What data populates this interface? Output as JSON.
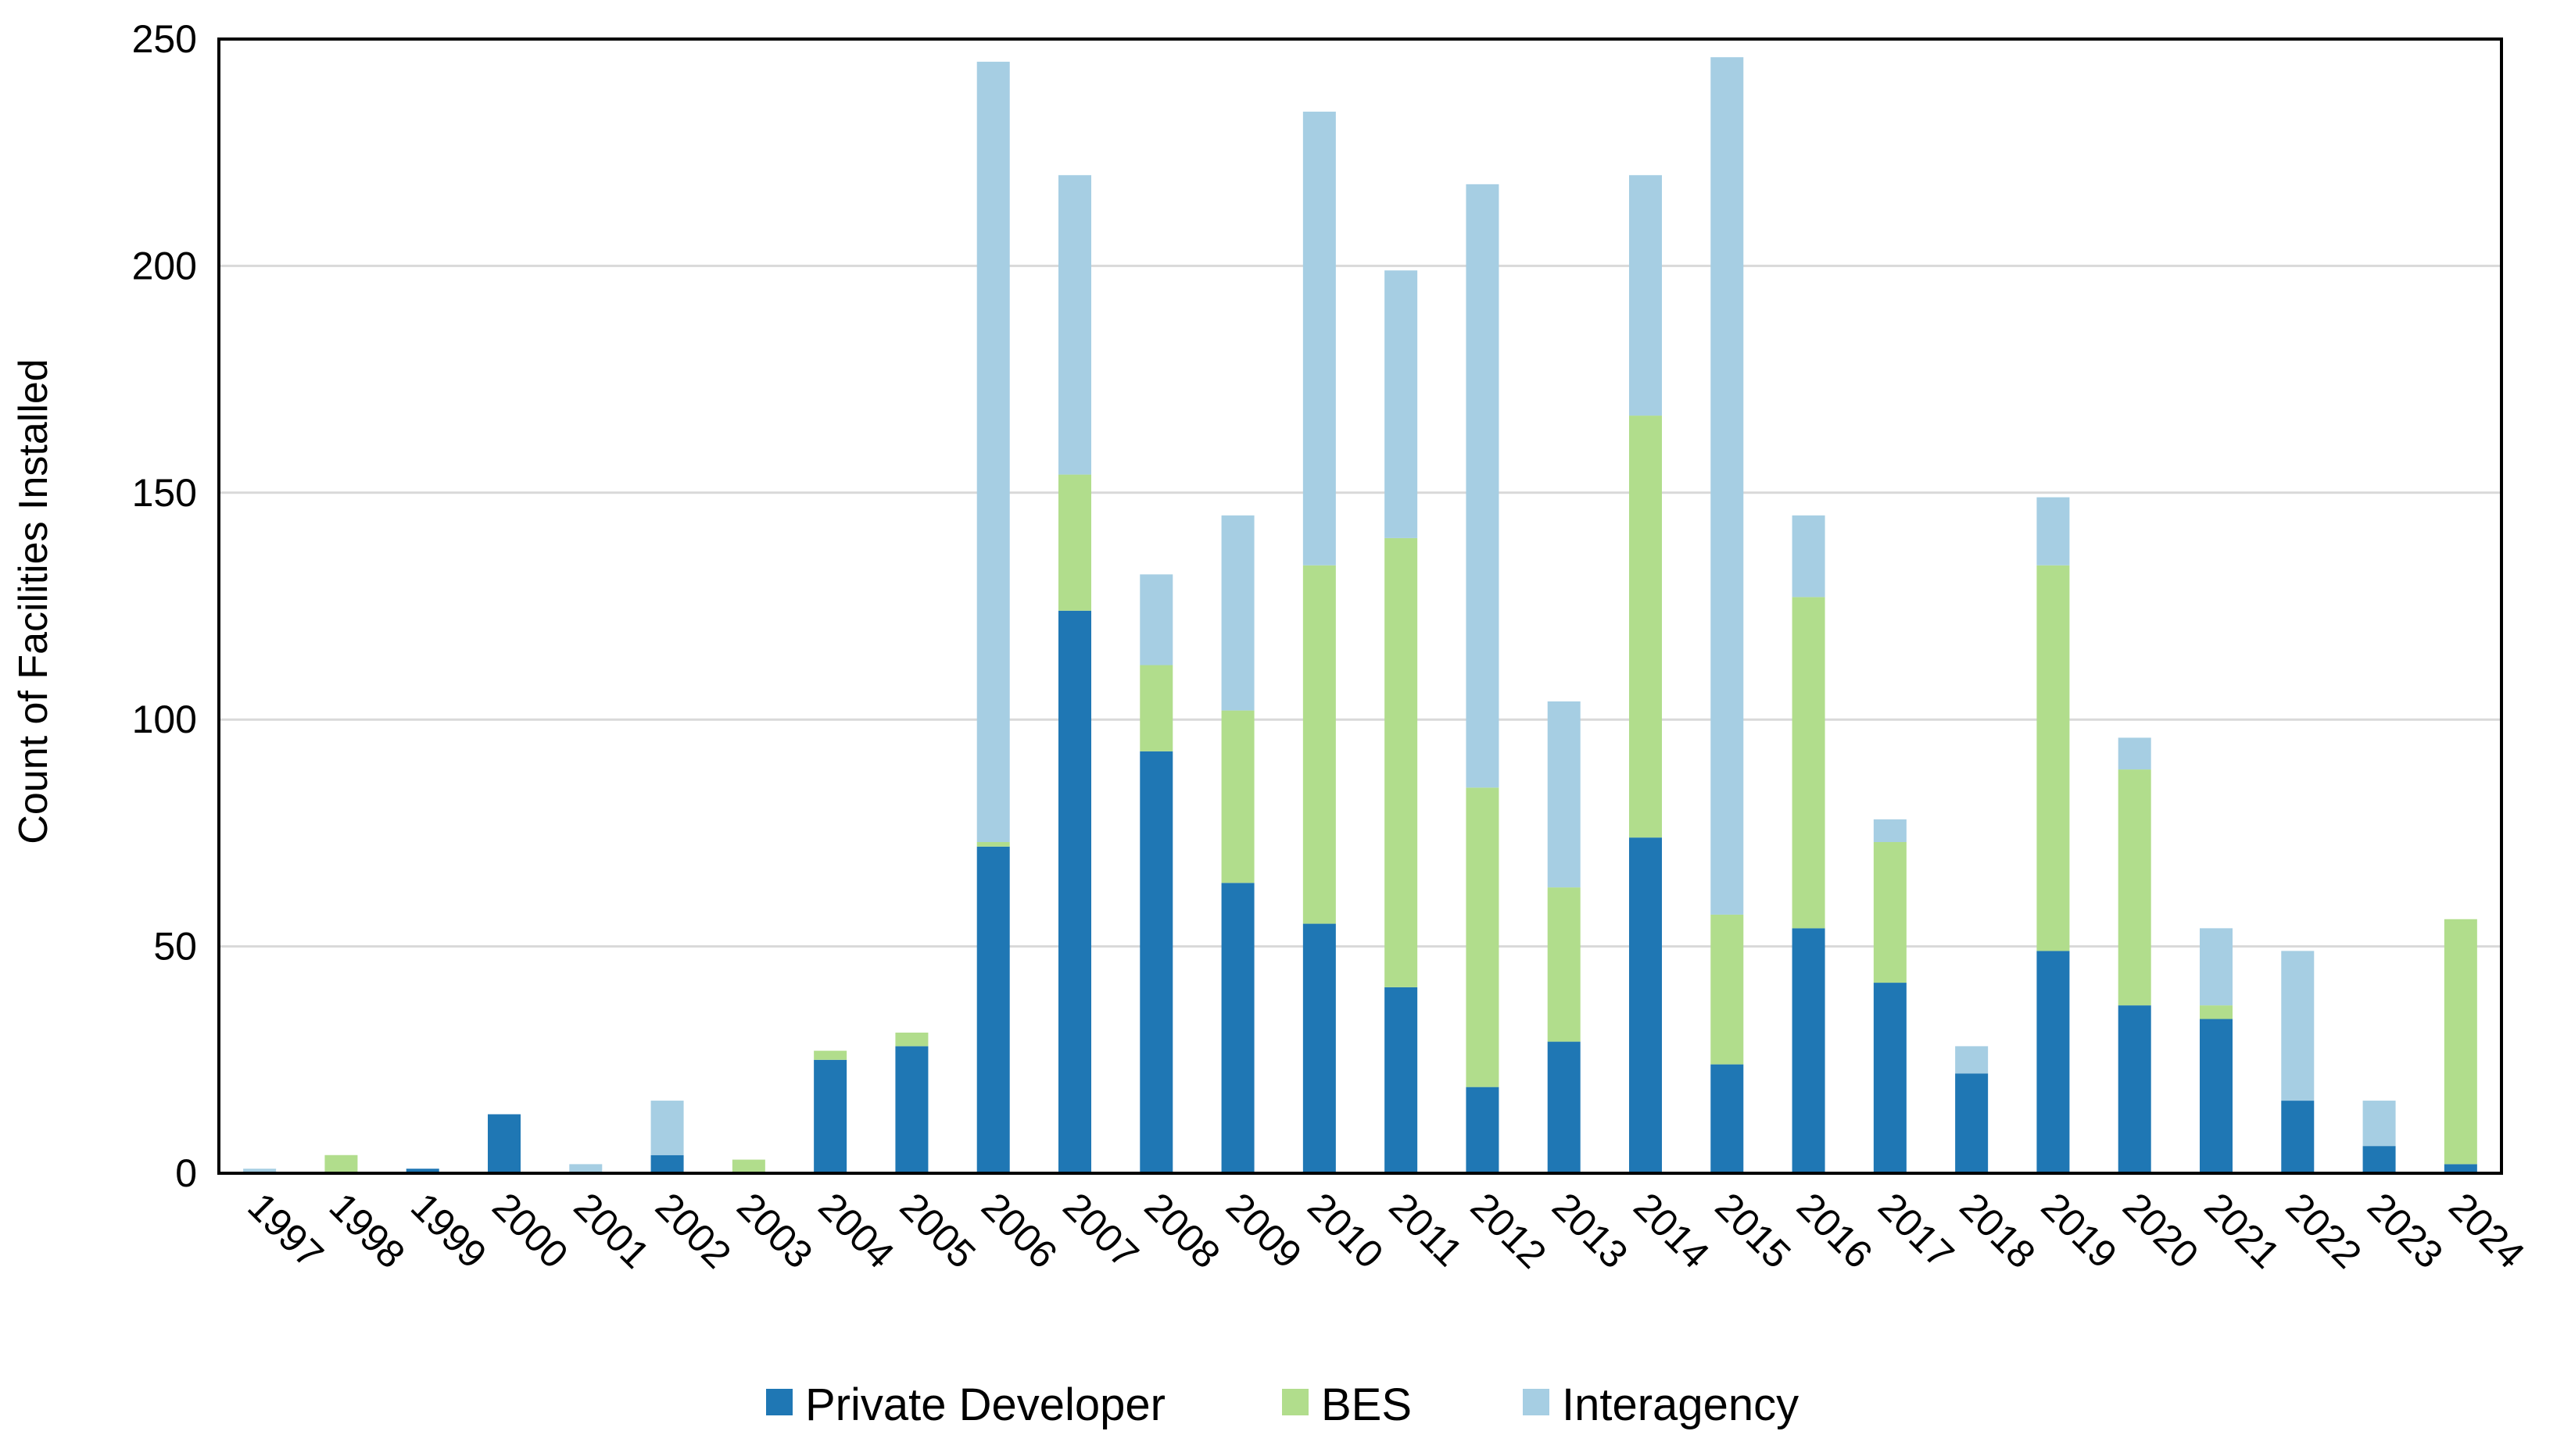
{
  "chart_data": {
    "type": "bar",
    "stacked": true,
    "title": "",
    "xlabel": "",
    "ylabel": "Count of Facilities Installed",
    "ylim": [
      0,
      250
    ],
    "yticks": [
      0,
      50,
      100,
      150,
      200,
      250
    ],
    "grid": "horizontal",
    "legend_position": "bottom",
    "categories": [
      "1997",
      "1998",
      "1999",
      "2000",
      "2001",
      "2002",
      "2003",
      "2004",
      "2005",
      "2006",
      "2007",
      "2008",
      "2009",
      "2010",
      "2011",
      "2012",
      "2013",
      "2014",
      "2015",
      "2016",
      "2017",
      "2018",
      "2019",
      "2020",
      "2021",
      "2022",
      "2023",
      "2024"
    ],
    "series": [
      {
        "name": "Private Developer",
        "color": "#1f77b4",
        "values": [
          0,
          0,
          1,
          13,
          0,
          4,
          0,
          25,
          28,
          72,
          124,
          93,
          64,
          55,
          41,
          19,
          29,
          74,
          24,
          54,
          42,
          22,
          49,
          37,
          34,
          16,
          6,
          2
        ]
      },
      {
        "name": "BES",
        "color": "#b1dd8c",
        "values": [
          0,
          4,
          0,
          0,
          0,
          0,
          3,
          2,
          3,
          1,
          30,
          19,
          38,
          79,
          99,
          66,
          34,
          93,
          33,
          73,
          31,
          0,
          85,
          52,
          3,
          0,
          0,
          54
        ]
      },
      {
        "name": "Interagency",
        "color": "#a6cee3",
        "values": [
          1,
          0,
          0,
          0,
          2,
          12,
          0,
          0,
          0,
          172,
          66,
          20,
          43,
          100,
          59,
          133,
          41,
          53,
          189,
          18,
          5,
          6,
          15,
          7,
          17,
          33,
          10,
          0
        ]
      }
    ]
  }
}
